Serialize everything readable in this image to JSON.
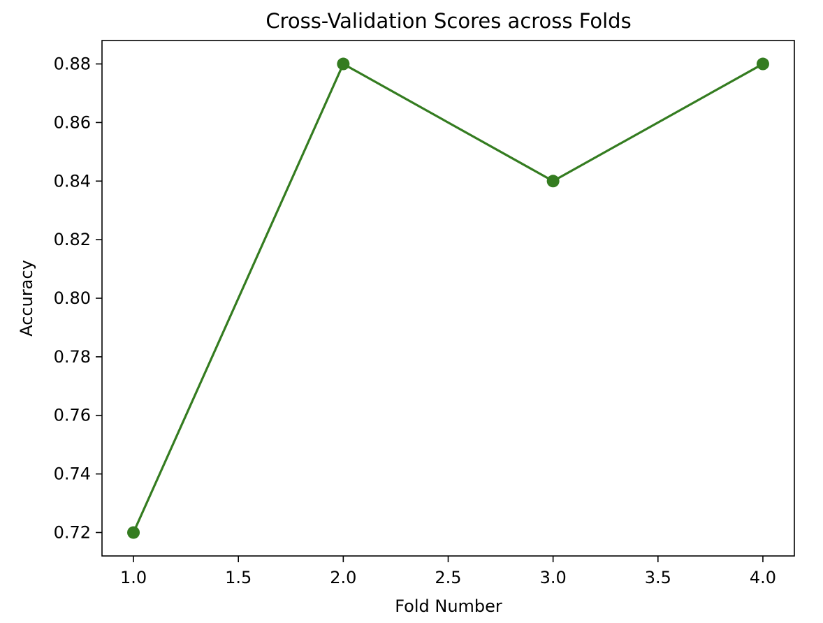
{
  "chart_data": {
    "type": "line",
    "title": "Cross-Validation Scores across Folds",
    "xlabel": "Fold Number",
    "ylabel": "Accuracy",
    "x": [
      1,
      2,
      3,
      4
    ],
    "y": [
      0.72,
      0.88,
      0.84,
      0.88
    ],
    "xlim": [
      0.85,
      4.15
    ],
    "ylim": [
      0.712,
      0.888
    ],
    "xticks": [
      1.0,
      1.5,
      2.0,
      2.5,
      3.0,
      3.5,
      4.0
    ],
    "xtick_labels": [
      "1.0",
      "1.5",
      "2.0",
      "2.5",
      "3.0",
      "3.5",
      "4.0"
    ],
    "yticks": [
      0.72,
      0.74,
      0.76,
      0.78,
      0.8,
      0.82,
      0.84,
      0.86,
      0.88
    ],
    "ytick_labels": [
      "0.72",
      "0.74",
      "0.76",
      "0.78",
      "0.80",
      "0.82",
      "0.84",
      "0.86",
      "0.88"
    ],
    "marker": "circle",
    "line_color": "#347c20",
    "grid": false,
    "legend": "none"
  }
}
